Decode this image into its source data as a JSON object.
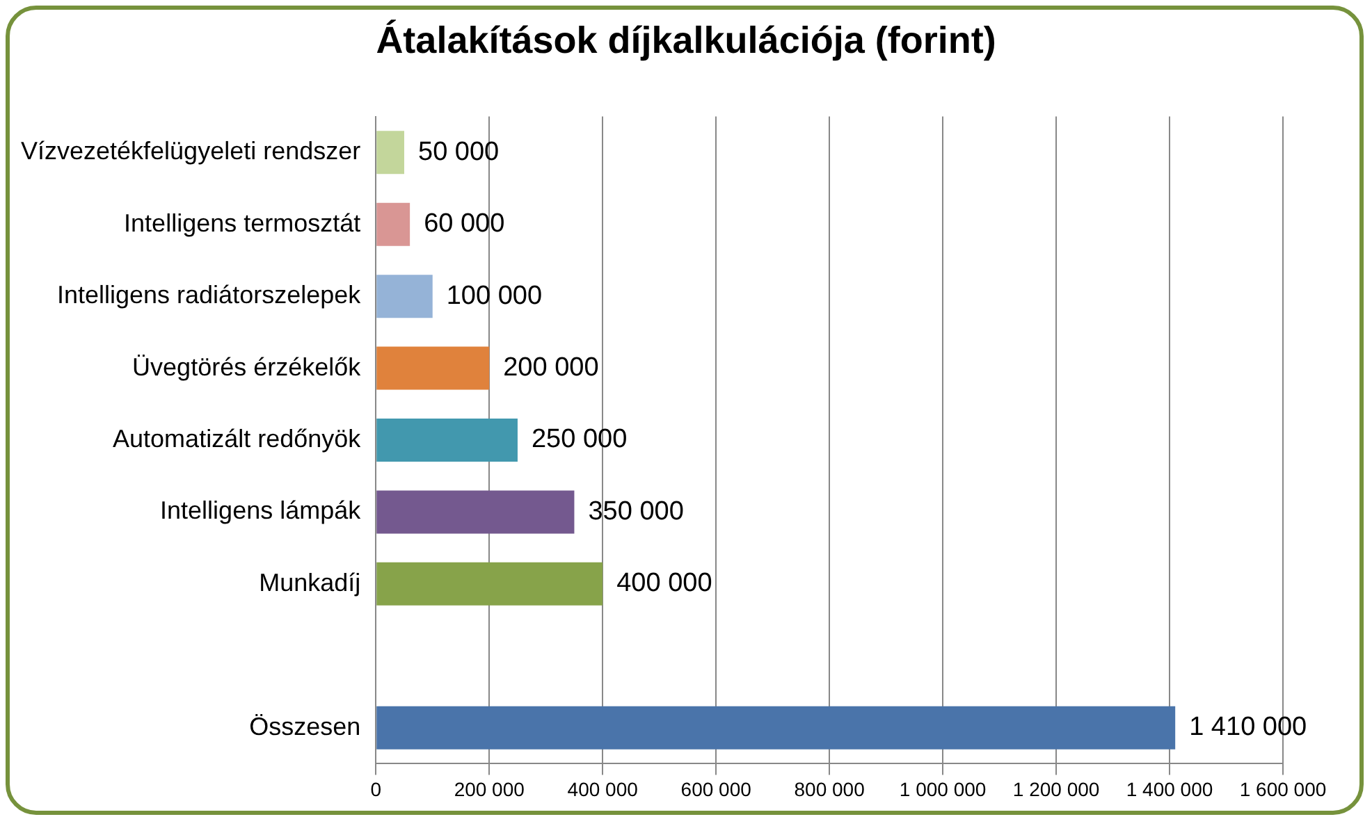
{
  "chart_data": {
    "type": "bar",
    "orientation": "horizontal",
    "title": "Átalakítások díjkalkulációja (forint)",
    "categories": [
      "Vízvezetékfelügyeleti rendszer",
      "Intelligens termosztát",
      "Intelligens radiátorszelepek",
      "Üvegtörés érzékelők",
      "Automatizált redőnyök",
      "Intelligens lámpák",
      "Munkadíj",
      null,
      "Összesen"
    ],
    "values": [
      50000,
      60000,
      100000,
      200000,
      250000,
      350000,
      400000,
      null,
      1410000
    ],
    "colors": [
      "#c3d69b",
      "#d99694",
      "#95b3d7",
      "#e0823c",
      "#4298ae",
      "#74598f",
      "#87a34a",
      null,
      "#4a74aa"
    ],
    "value_labels": [
      "50 000",
      "60 000",
      "100 000",
      "200 000",
      "250 000",
      "350 000",
      "400 000",
      null,
      "1 410 000"
    ],
    "xlim": [
      0,
      1600000
    ],
    "xticks": [
      0,
      {
        "value": 200000,
        "label": "200 000"
      },
      {
        "value": 400000,
        "label": "400 000"
      },
      {
        "value": 600000,
        "label": "600 000"
      },
      {
        "value": 800000,
        "label": "800 000"
      },
      {
        "value": 1000000,
        "label": "1 000 000"
      },
      {
        "value": 1200000,
        "label": "1 200 000"
      },
      {
        "value": 1400000,
        "label": "1 400 000"
      },
      {
        "value": 1600000,
        "label": "1 600 000"
      }
    ],
    "grid": "x",
    "legend": false
  }
}
